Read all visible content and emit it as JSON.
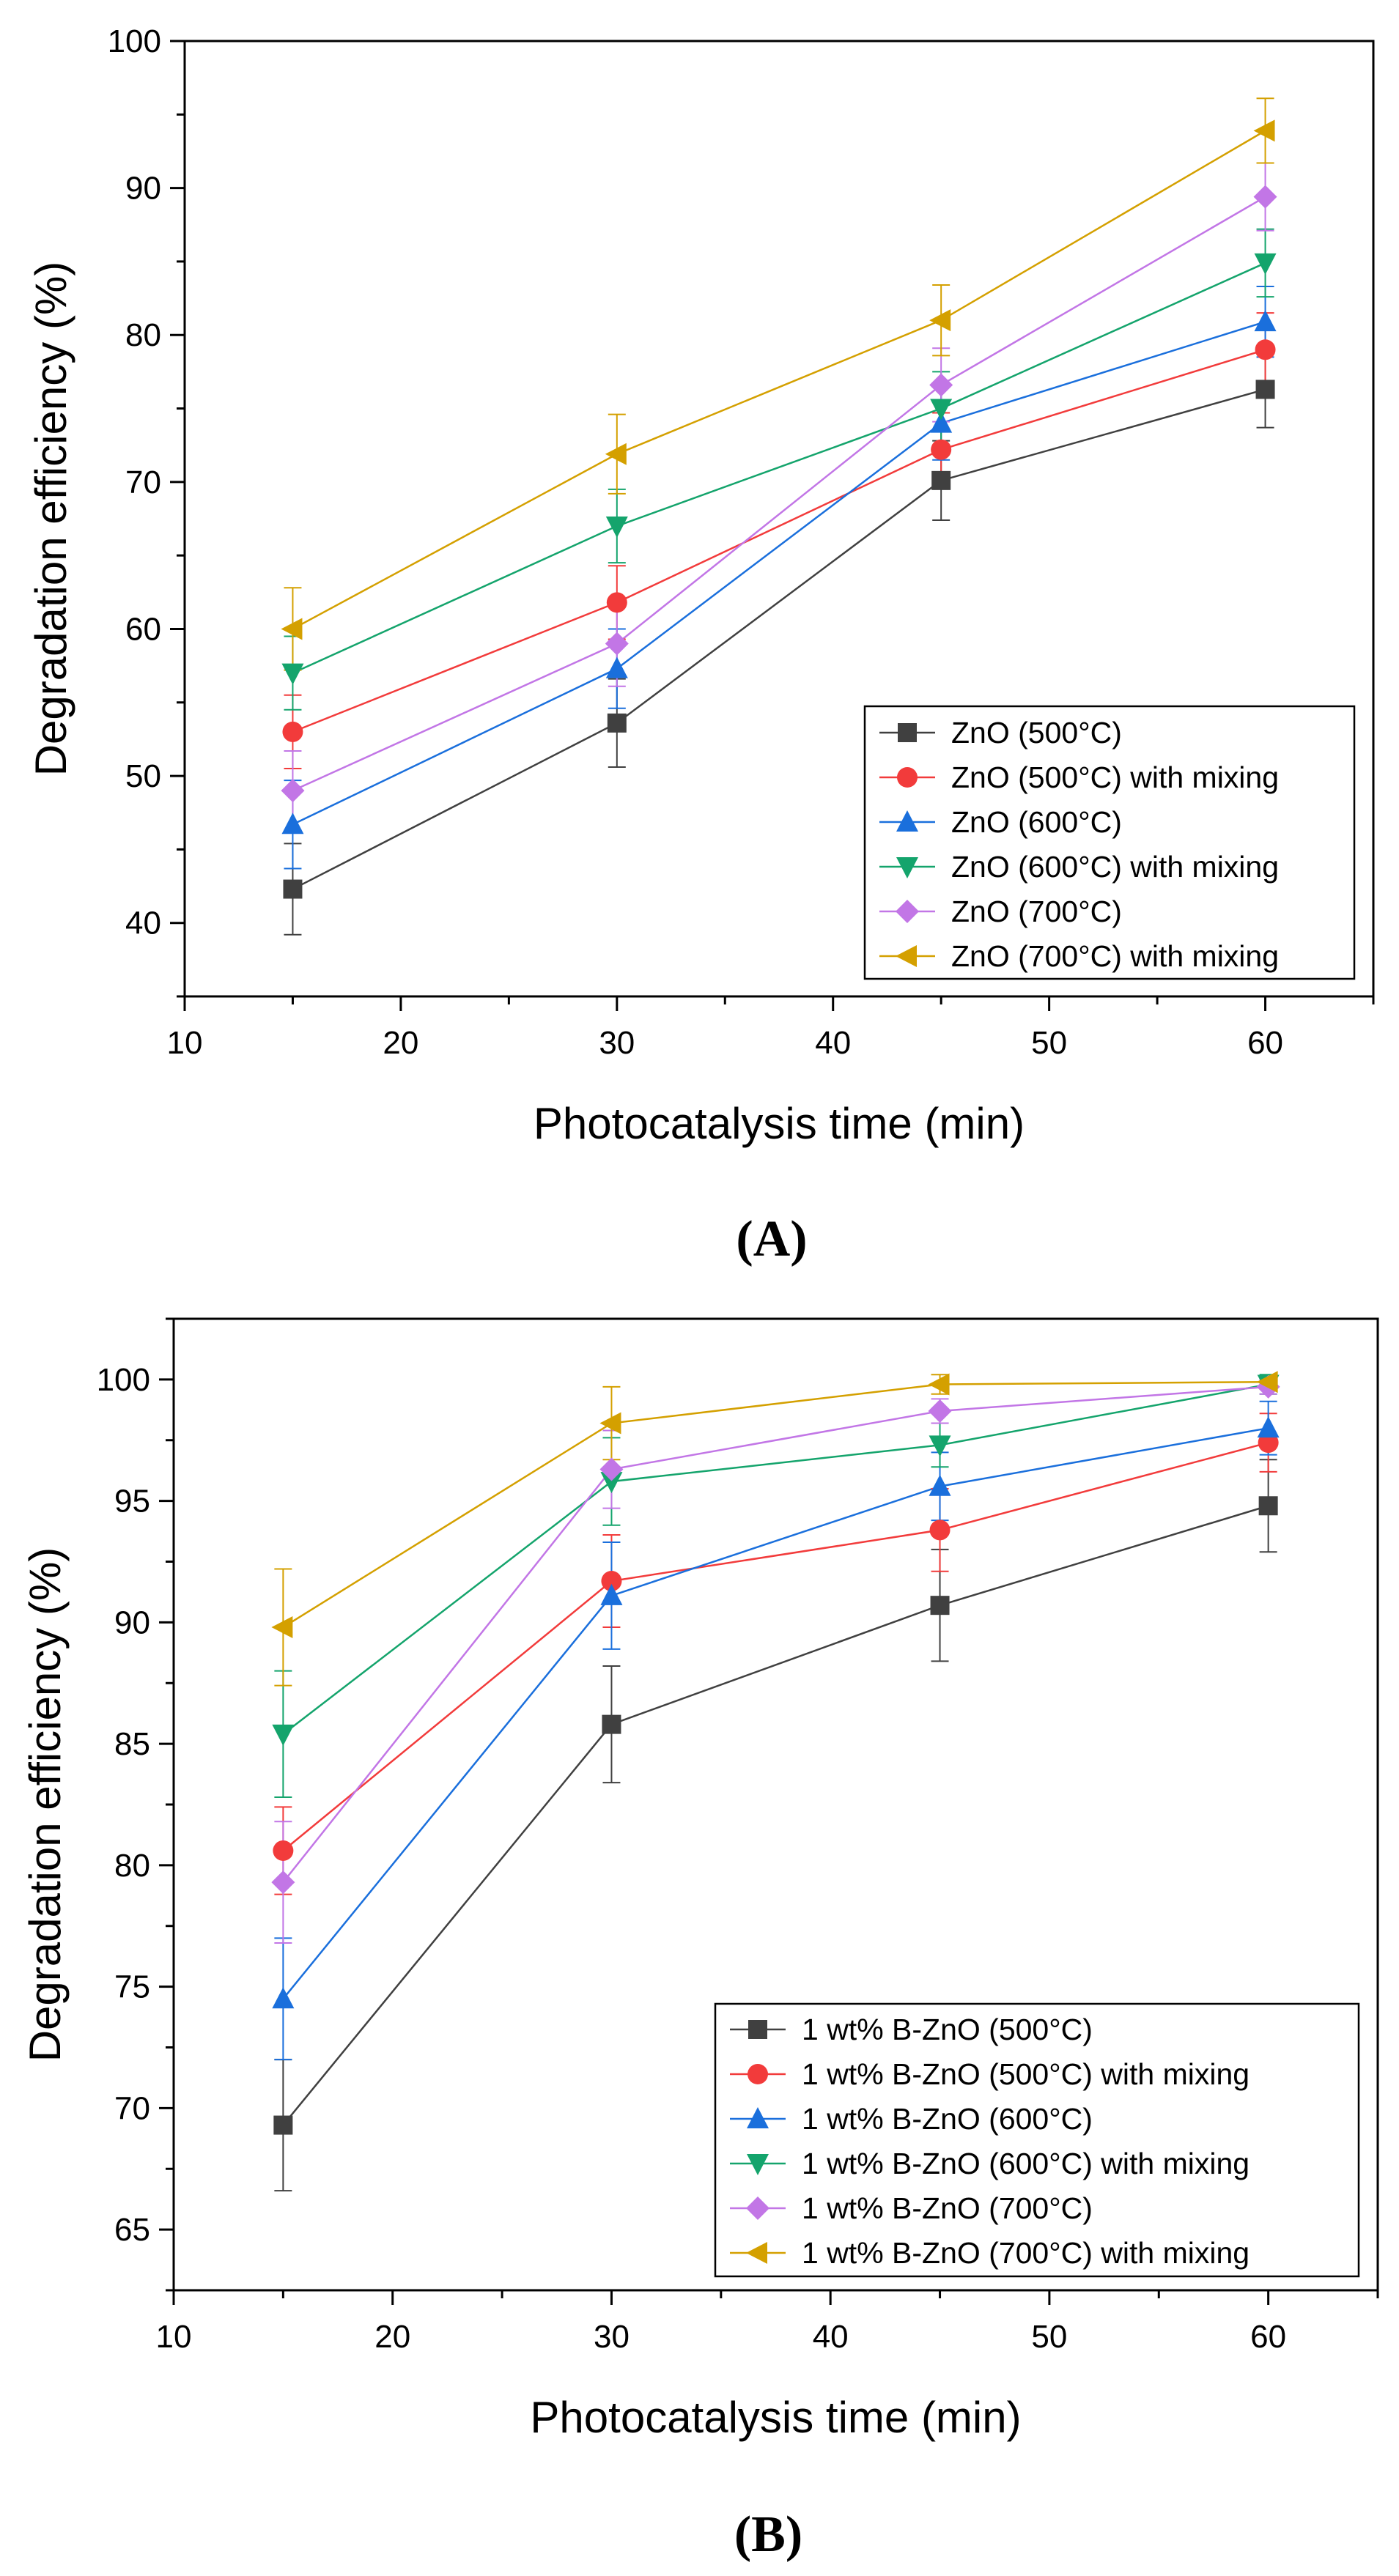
{
  "chart_data": [
    {
      "type": "line",
      "panel_label": "(A)",
      "xlabel": "Photocatalysis time (min)",
      "ylabel": "Degradation efficiency (%)",
      "xlim": [
        10,
        65
      ],
      "ylim": [
        35,
        100
      ],
      "xticks": [
        10,
        20,
        30,
        40,
        50,
        60
      ],
      "yticks": [
        40,
        50,
        60,
        70,
        80,
        90,
        100
      ],
      "legend_position": "bottom-right",
      "x": [
        15,
        30,
        45,
        60
      ],
      "series": [
        {
          "name": "ZnO (500°C)",
          "color": "#404040",
          "marker": "square",
          "values": [
            42.3,
            53.6,
            70.1,
            76.3
          ],
          "errors": [
            3.1,
            3.0,
            2.7,
            2.6
          ]
        },
        {
          "name": "ZnO (500°C) with mixing",
          "color": "#f23b3b",
          "marker": "circle",
          "values": [
            53.0,
            61.8,
            72.2,
            79.0
          ],
          "errors": [
            2.5,
            2.5,
            2.5,
            2.5
          ]
        },
        {
          "name": "ZnO (600°C)",
          "color": "#1a6fdc",
          "marker": "triangle-up",
          "values": [
            46.7,
            57.3,
            74.0,
            80.9
          ],
          "errors": [
            3.0,
            2.7,
            2.5,
            2.4
          ]
        },
        {
          "name": "ZnO (600°C) with mixing",
          "color": "#14a46c",
          "marker": "triangle-down",
          "values": [
            57.0,
            67.0,
            75.0,
            84.9
          ],
          "errors": [
            2.5,
            2.5,
            2.5,
            2.3
          ]
        },
        {
          "name": "ZnO (700°C)",
          "color": "#c276e6",
          "marker": "diamond",
          "values": [
            49.0,
            59.0,
            76.6,
            89.4
          ],
          "errors": [
            2.7,
            2.9,
            2.5,
            2.3
          ]
        },
        {
          "name": "ZnO (700°C) with mixing",
          "color": "#d4a000",
          "marker": "triangle-left",
          "values": [
            60.0,
            71.9,
            81.0,
            93.9
          ],
          "errors": [
            2.8,
            2.7,
            2.4,
            2.2
          ]
        }
      ]
    },
    {
      "type": "line",
      "panel_label": "(B)",
      "xlabel": "Photocatalysis time (min)",
      "ylabel": "Degradation efficiency (%)",
      "xlim": [
        10,
        65
      ],
      "ylim": [
        62.5,
        102.5
      ],
      "xticks": [
        10,
        20,
        30,
        40,
        50,
        60
      ],
      "yticks": [
        65,
        70,
        75,
        80,
        85,
        90,
        95,
        100
      ],
      "legend_position": "bottom-right",
      "x": [
        15,
        30,
        45,
        60
      ],
      "series": [
        {
          "name": "1 wt% B-ZnO (500°C)",
          "color": "#404040",
          "marker": "square",
          "values": [
            69.3,
            85.8,
            90.7,
            94.8
          ],
          "errors": [
            2.7,
            2.4,
            2.3,
            1.9
          ]
        },
        {
          "name": "1 wt% B-ZnO (500°C) with mixing",
          "color": "#f23b3b",
          "marker": "circle",
          "values": [
            80.6,
            91.7,
            93.8,
            97.4
          ],
          "errors": [
            1.8,
            1.9,
            1.7,
            1.2
          ]
        },
        {
          "name": "1 wt% B-ZnO (600°C)",
          "color": "#1a6fdc",
          "marker": "triangle-up",
          "values": [
            74.5,
            91.1,
            95.6,
            98.0
          ],
          "errors": [
            2.5,
            2.2,
            1.4,
            1.1
          ]
        },
        {
          "name": "1 wt% B-ZnO (600°C) with mixing",
          "color": "#14a46c",
          "marker": "triangle-down",
          "values": [
            85.4,
            95.8,
            97.3,
            99.8
          ],
          "errors": [
            2.6,
            1.8,
            0.9,
            0.4
          ]
        },
        {
          "name": "1 wt% B-ZnO (700°C)",
          "color": "#c276e6",
          "marker": "diamond",
          "values": [
            79.3,
            96.3,
            98.7,
            99.7
          ],
          "errors": [
            2.5,
            1.6,
            0.5,
            0.3
          ]
        },
        {
          "name": "1 wt% B-ZnO (700°C) with mixing",
          "color": "#d4a000",
          "marker": "triangle-left",
          "values": [
            89.8,
            98.2,
            99.8,
            99.9
          ],
          "errors": [
            2.4,
            1.5,
            0.4,
            0.2
          ]
        }
      ]
    }
  ]
}
